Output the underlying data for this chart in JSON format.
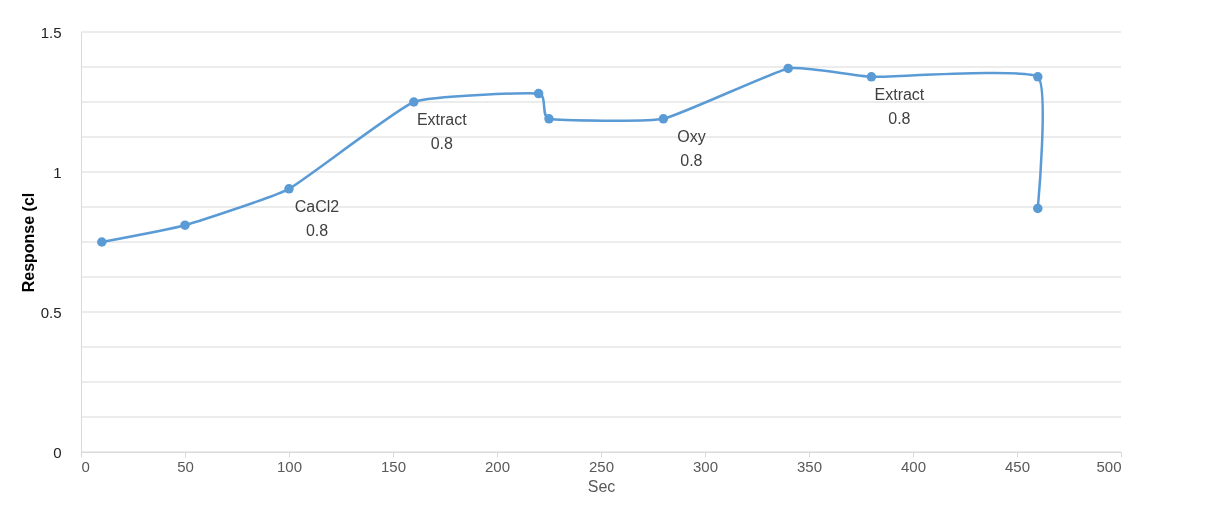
{
  "chart_data": {
    "type": "line",
    "xlabel": "Sec",
    "ylabel": "Response (cl",
    "x": [
      10,
      50,
      100,
      160,
      220,
      225,
      280,
      340,
      380,
      460,
      460
    ],
    "series": [
      {
        "color": "#5b9bd5",
        "values": [
          0.75,
          0.81,
          0.94,
          1.25,
          1.28,
          1.19,
          1.19,
          1.37,
          1.34,
          1.34,
          0.87
        ]
      }
    ],
    "xlim": [
      0,
      500
    ],
    "xticks": [
      0,
      50,
      100,
      150,
      200,
      250,
      300,
      350,
      400,
      450,
      500
    ],
    "ylim": [
      0,
      1.5
    ],
    "yticks": [
      0,
      {
        "value": 0.125,
        "label": null
      },
      {
        "value": 0.25,
        "label": null
      },
      {
        "value": 0.375,
        "label": null
      },
      0.5,
      {
        "value": 0.625,
        "label": null
      },
      {
        "value": 0.75,
        "label": null
      },
      {
        "value": 0.875,
        "label": null
      },
      1,
      {
        "value": 1.125,
        "label": null
      },
      {
        "value": 1.25,
        "label": null
      },
      {
        "value": 1.375,
        "label": null
      },
      1.5
    ],
    "grid": "y",
    "marker": "circle",
    "line_style": "solid",
    "annotations": [
      {
        "text": "CaCl2\n0.8",
        "x": 100,
        "y": 0.94
      },
      {
        "text": "Extract\n0.8",
        "x": 160,
        "y": 1.25
      },
      {
        "text": "Oxy\n0.8",
        "x": 280,
        "y": 1.19
      },
      {
        "text": "Extract\n0.8",
        "x": 380,
        "y": 1.34
      }
    ]
  }
}
